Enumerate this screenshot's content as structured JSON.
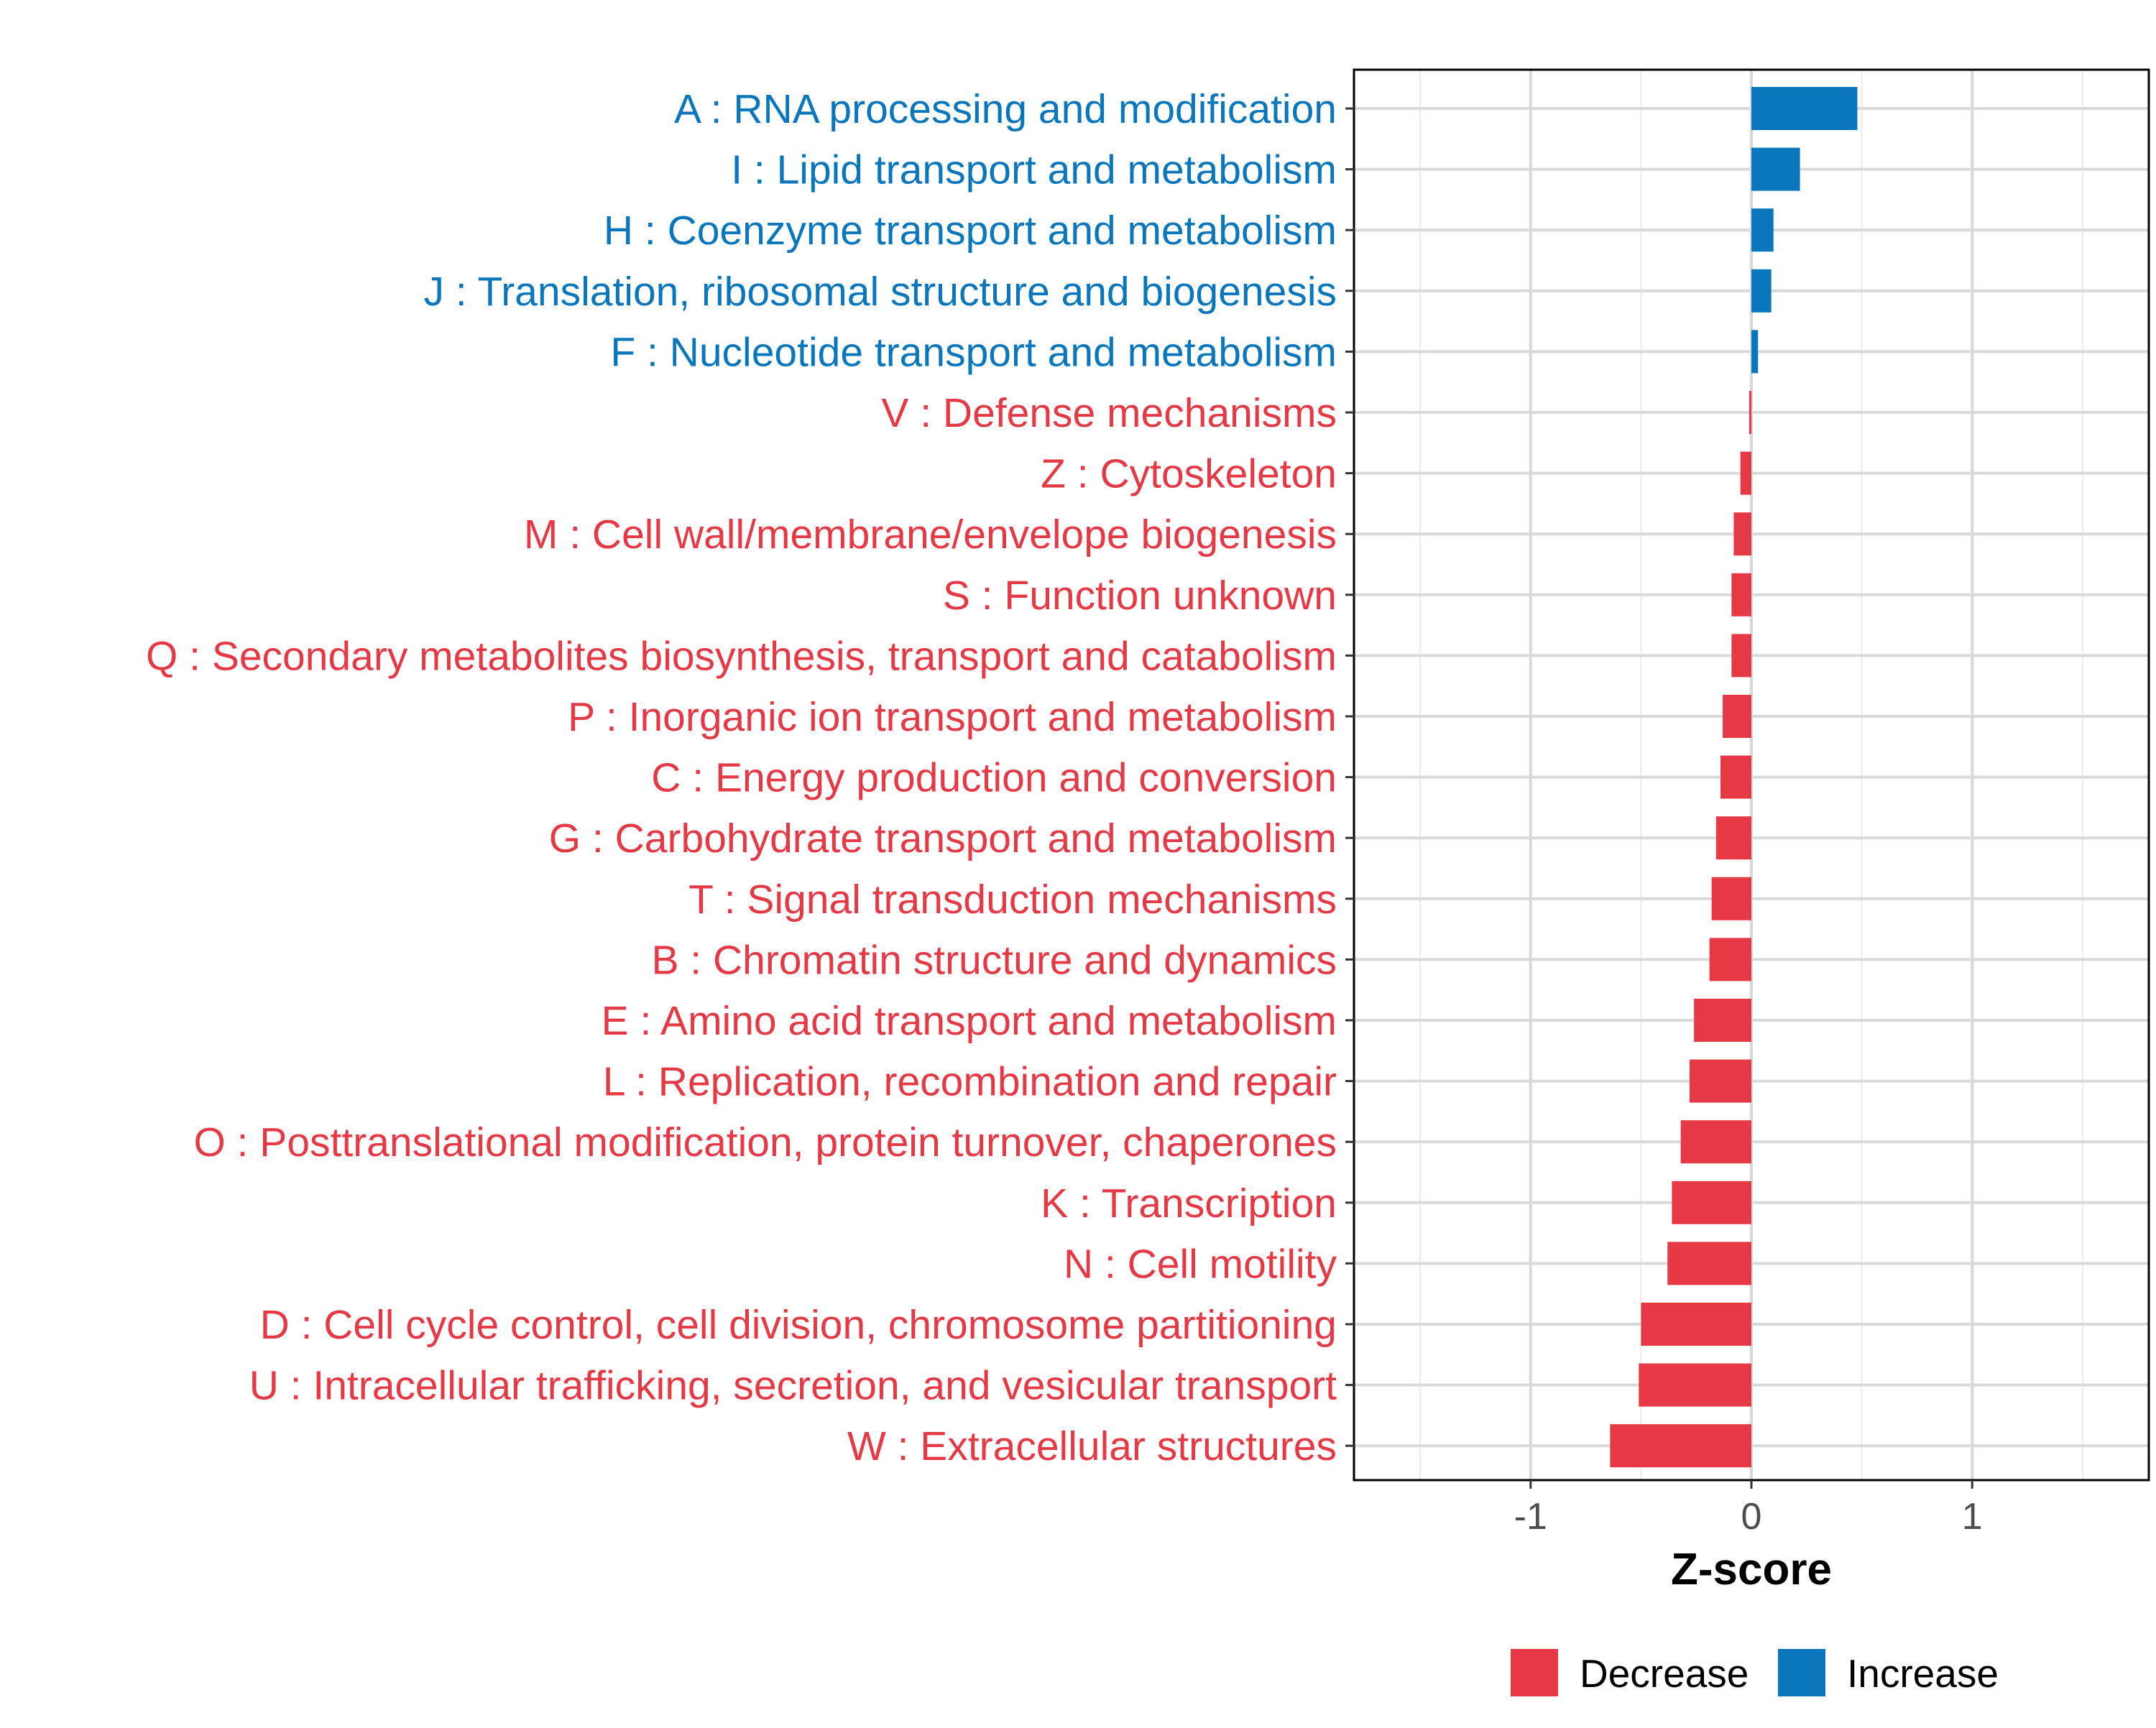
{
  "chart_data": {
    "type": "bar",
    "orientation": "horizontal",
    "title": "",
    "xlabel": "Z-score",
    "ylabel": "",
    "xlim": [
      -1.8,
      1.8
    ],
    "xticks": [
      -1,
      0,
      1
    ],
    "xtick_labels": [
      "-1",
      "0",
      "1"
    ],
    "grid": true,
    "legend_position": "bottom",
    "colors": {
      "Decrease": "#e63946",
      "Increase": "#0a77bd"
    },
    "categories": [
      "A : RNA processing and modification",
      "I : Lipid transport and metabolism",
      "H : Coenzyme transport and metabolism",
      "J : Translation, ribosomal structure and biogenesis",
      "F : Nucleotide transport and metabolism",
      "V : Defense mechanisms",
      "Z : Cytoskeleton",
      "M : Cell wall/membrane/envelope biogenesis",
      "S : Function unknown",
      "Q : Secondary metabolites biosynthesis, transport and catabolism",
      "P : Inorganic ion transport and metabolism",
      "C : Energy production and conversion",
      "G : Carbohydrate transport and metabolism",
      "T : Signal transduction mechanisms",
      "B : Chromatin structure and dynamics",
      "E : Amino acid transport and metabolism",
      "L : Replication, recombination and repair",
      "O : Posttranslational modification, protein turnover, chaperones",
      "K : Transcription",
      "N : Cell motility",
      "D : Cell cycle control, cell division, chromosome partitioning",
      "U : Intracellular trafficking, secretion, and vesicular transport",
      "W : Extracellular structures"
    ],
    "values": [
      0.48,
      0.22,
      0.1,
      0.09,
      0.03,
      -0.01,
      -0.05,
      -0.08,
      -0.09,
      -0.09,
      -0.13,
      -0.14,
      -0.16,
      -0.18,
      -0.19,
      -0.26,
      -0.28,
      -0.32,
      -0.36,
      -0.38,
      -0.5,
      -0.51,
      -0.64
    ],
    "groups": [
      "Increase",
      "Increase",
      "Increase",
      "Increase",
      "Increase",
      "Decrease",
      "Decrease",
      "Decrease",
      "Decrease",
      "Decrease",
      "Decrease",
      "Decrease",
      "Decrease",
      "Decrease",
      "Decrease",
      "Decrease",
      "Decrease",
      "Decrease",
      "Decrease",
      "Decrease",
      "Decrease",
      "Decrease",
      "Decrease"
    ],
    "legend": [
      "Decrease",
      "Increase"
    ]
  }
}
